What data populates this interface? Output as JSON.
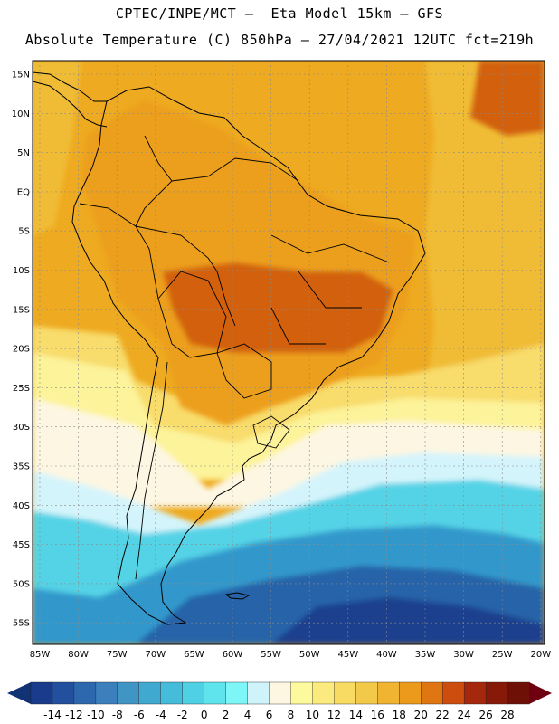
{
  "header": {
    "line1": "CPTEC/INPE/MCT —  Eta Model 15km — GFS",
    "line2": "Absolute Temperature (C) 850hPa — 27/04/2021 12UTC fct=219h"
  },
  "axes": {
    "lat_labels": [
      "15N",
      "10N",
      "5N",
      "EQ",
      "5S",
      "10S",
      "15S",
      "20S",
      "25S",
      "30S",
      "35S",
      "40S",
      "45S",
      "50S",
      "55S"
    ],
    "lon_labels": [
      "85W",
      "80W",
      "75W",
      "70W",
      "65W",
      "60W",
      "55W",
      "50W",
      "45W",
      "40W",
      "35W",
      "30W",
      "25W",
      "20W"
    ]
  },
  "colorbar": {
    "labels": [
      "-14",
      "-12",
      "-10",
      "-8",
      "-6",
      "-4",
      "-2",
      "0",
      "2",
      "4",
      "6",
      "8",
      "10",
      "12",
      "14",
      "16",
      "18",
      "20",
      "22",
      "24",
      "26",
      "28"
    ],
    "colors": [
      "#1a3a8c",
      "#22509e",
      "#2d68ae",
      "#3b7fbd",
      "#4195c5",
      "#3fa9cf",
      "#45bcd9",
      "#4fd0e4",
      "#5fe4ee",
      "#7ef5f7",
      "#cff3fb",
      "#fdf7e1",
      "#fdfa9d",
      "#fbeb7e",
      "#f7db62",
      "#f3c94a",
      "#f0b332",
      "#ec9a1c",
      "#e07612",
      "#cc4d0e",
      "#a5280c",
      "#861908",
      "#6e1006"
    ],
    "low_arrow_color": "#123276",
    "high_arrow_color": "#6e0012"
  },
  "palette": {
    "warm_dark": "#d2600f",
    "warm": "#ec9f1a",
    "orange": "#eeaa20",
    "gold": "#f0bc34",
    "yellow": "#f8dc6c",
    "pale_yellow": "#fdf39a",
    "cream": "#fdf6e2",
    "pale_blue": "#d4f4fb",
    "cyan": "#54d3e6",
    "blue_mid": "#3298cc",
    "blue": "#2763a8",
    "navy": "#1d3f8e"
  }
}
